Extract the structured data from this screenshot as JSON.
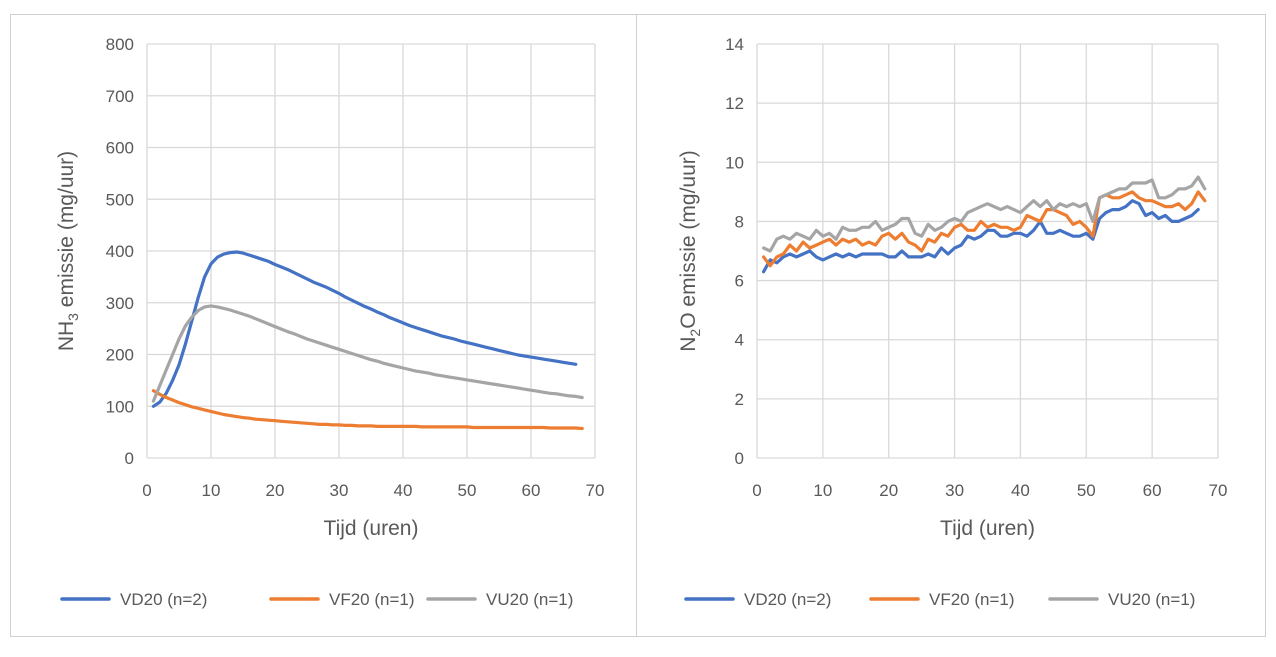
{
  "colors": {
    "VD20": "#4472C4",
    "VF20": "#ED7D31",
    "VU20": "#A5A5A5",
    "grid": "#D9D9D9",
    "text": "#595959",
    "panel_border": "#D0D0D0"
  },
  "chart_data": [
    {
      "type": "line",
      "title": "",
      "xlabel": "Tijd (uren)",
      "ylabel": {
        "pre": "NH",
        "sub": "3",
        "post": " emissie (mg/uur)"
      },
      "xlim": [
        0,
        70
      ],
      "ylim": [
        0,
        800
      ],
      "xticks": [
        0,
        10,
        20,
        30,
        40,
        50,
        60,
        70
      ],
      "yticks": [
        0,
        100,
        200,
        300,
        400,
        500,
        600,
        700,
        800
      ],
      "grid": true,
      "legend": "bottom",
      "series": [
        {
          "name": "VD20 (n=2)",
          "key": "VD20",
          "x": [
            1,
            2,
            3,
            4,
            5,
            6,
            7,
            8,
            9,
            10,
            11,
            12,
            13,
            14,
            15,
            16,
            17,
            18,
            19,
            20,
            21,
            22,
            23,
            24,
            25,
            26,
            27,
            28,
            29,
            30,
            31,
            32,
            33,
            34,
            35,
            36,
            37,
            38,
            39,
            40,
            41,
            42,
            43,
            44,
            45,
            46,
            47,
            48,
            49,
            50,
            51,
            52,
            53,
            54,
            55,
            56,
            57,
            58,
            59,
            60,
            61,
            62,
            63,
            64,
            65,
            66,
            67
          ],
          "y": [
            100,
            108,
            125,
            150,
            180,
            220,
            265,
            310,
            350,
            375,
            388,
            394,
            397,
            398,
            396,
            392,
            388,
            384,
            380,
            374,
            369,
            364,
            358,
            352,
            346,
            340,
            335,
            330,
            324,
            318,
            311,
            305,
            299,
            293,
            288,
            282,
            277,
            271,
            266,
            261,
            256,
            252,
            248,
            244,
            240,
            236,
            233,
            230,
            226,
            223,
            220,
            217,
            214,
            211,
            208,
            205,
            202,
            199,
            197,
            195,
            193,
            191,
            189,
            187,
            185,
            183,
            181
          ]
        },
        {
          "name": "VF20 (n=1)",
          "key": "VF20",
          "x": [
            1,
            2,
            3,
            4,
            5,
            6,
            7,
            8,
            9,
            10,
            11,
            12,
            13,
            14,
            15,
            16,
            17,
            18,
            19,
            20,
            21,
            22,
            23,
            24,
            25,
            26,
            27,
            28,
            29,
            30,
            31,
            32,
            33,
            34,
            35,
            36,
            37,
            38,
            39,
            40,
            41,
            42,
            43,
            44,
            45,
            46,
            47,
            48,
            49,
            50,
            51,
            52,
            53,
            54,
            55,
            56,
            57,
            58,
            59,
            60,
            61,
            62,
            63,
            64,
            65,
            66,
            67,
            68
          ],
          "y": [
            130,
            123,
            117,
            112,
            107,
            103,
            99,
            96,
            93,
            90,
            87,
            84,
            82,
            80,
            78,
            77,
            75,
            74,
            73,
            72,
            71,
            70,
            69,
            68,
            67,
            66,
            65,
            65,
            64,
            64,
            63,
            63,
            62,
            62,
            62,
            61,
            61,
            61,
            61,
            61,
            61,
            61,
            60,
            60,
            60,
            60,
            60,
            60,
            60,
            60,
            59,
            59,
            59,
            59,
            59,
            59,
            59,
            59,
            59,
            59,
            59,
            59,
            58,
            58,
            58,
            58,
            58,
            57
          ]
        },
        {
          "name": "VU20 (n=1)",
          "key": "VU20",
          "x": [
            1,
            2,
            3,
            4,
            5,
            6,
            7,
            8,
            9,
            10,
            11,
            12,
            13,
            14,
            15,
            16,
            17,
            18,
            19,
            20,
            21,
            22,
            23,
            24,
            25,
            26,
            27,
            28,
            29,
            30,
            31,
            32,
            33,
            34,
            35,
            36,
            37,
            38,
            39,
            40,
            41,
            42,
            43,
            44,
            45,
            46,
            47,
            48,
            49,
            50,
            51,
            52,
            53,
            54,
            55,
            56,
            57,
            58,
            59,
            60,
            61,
            62,
            63,
            64,
            65,
            66,
            67,
            68
          ],
          "y": [
            110,
            140,
            170,
            200,
            230,
            255,
            272,
            285,
            292,
            294,
            292,
            289,
            286,
            282,
            278,
            274,
            269,
            264,
            259,
            254,
            249,
            244,
            240,
            235,
            230,
            226,
            222,
            218,
            214,
            210,
            206,
            202,
            198,
            194,
            190,
            187,
            183,
            180,
            177,
            174,
            171,
            168,
            166,
            164,
            161,
            159,
            157,
            155,
            153,
            151,
            149,
            147,
            145,
            143,
            141,
            139,
            137,
            135,
            133,
            131,
            129,
            127,
            125,
            124,
            122,
            120,
            119,
            117
          ]
        }
      ]
    },
    {
      "type": "line",
      "title": "",
      "xlabel": "Tijd (uren)",
      "ylabel": {
        "pre": "N",
        "sub": "2",
        "post": "O emissie (mg/uur)"
      },
      "xlim": [
        0,
        70
      ],
      "ylim": [
        0,
        14
      ],
      "xticks": [
        0,
        10,
        20,
        30,
        40,
        50,
        60,
        70
      ],
      "yticks": [
        0,
        2,
        4,
        6,
        8,
        10,
        12,
        14
      ],
      "grid": true,
      "legend": "bottom",
      "series": [
        {
          "name": "VD20 (n=2)",
          "key": "VD20",
          "x": [
            1,
            2,
            3,
            4,
            5,
            6,
            7,
            8,
            9,
            10,
            11,
            12,
            13,
            14,
            15,
            16,
            17,
            18,
            19,
            20,
            21,
            22,
            23,
            24,
            25,
            26,
            27,
            28,
            29,
            30,
            31,
            32,
            33,
            34,
            35,
            36,
            37,
            38,
            39,
            40,
            41,
            42,
            43,
            44,
            45,
            46,
            47,
            48,
            49,
            50,
            51,
            52,
            53,
            54,
            55,
            56,
            57,
            58,
            59,
            60,
            61,
            62,
            63,
            64,
            65,
            66,
            67
          ],
          "y": [
            6.3,
            6.7,
            6.6,
            6.8,
            6.9,
            6.8,
            6.9,
            7.0,
            6.8,
            6.7,
            6.8,
            6.9,
            6.8,
            6.9,
            6.8,
            6.9,
            6.9,
            6.9,
            6.9,
            6.8,
            6.8,
            7.0,
            6.8,
            6.8,
            6.8,
            6.9,
            6.8,
            7.1,
            6.9,
            7.1,
            7.2,
            7.5,
            7.4,
            7.5,
            7.7,
            7.7,
            7.5,
            7.5,
            7.6,
            7.6,
            7.5,
            7.7,
            8.0,
            7.6,
            7.6,
            7.7,
            7.6,
            7.5,
            7.5,
            7.6,
            7.4,
            8.1,
            8.3,
            8.4,
            8.4,
            8.5,
            8.7,
            8.6,
            8.2,
            8.3,
            8.1,
            8.2,
            8.0,
            8.0,
            8.1,
            8.2,
            8.4
          ]
        },
        {
          "name": "VF20 (n=1)",
          "key": "VF20",
          "x": [
            1,
            2,
            3,
            4,
            5,
            6,
            7,
            8,
            9,
            10,
            11,
            12,
            13,
            14,
            15,
            16,
            17,
            18,
            19,
            20,
            21,
            22,
            23,
            24,
            25,
            26,
            27,
            28,
            29,
            30,
            31,
            32,
            33,
            34,
            35,
            36,
            37,
            38,
            39,
            40,
            41,
            42,
            43,
            44,
            45,
            46,
            47,
            48,
            49,
            50,
            51,
            52,
            53,
            54,
            55,
            56,
            57,
            58,
            59,
            60,
            61,
            62,
            63,
            64,
            65,
            66,
            67,
            68
          ],
          "y": [
            6.8,
            6.5,
            6.8,
            6.9,
            7.2,
            7.0,
            7.3,
            7.1,
            7.2,
            7.3,
            7.4,
            7.2,
            7.4,
            7.3,
            7.4,
            7.2,
            7.3,
            7.2,
            7.5,
            7.6,
            7.4,
            7.6,
            7.3,
            7.2,
            7.0,
            7.4,
            7.3,
            7.6,
            7.5,
            7.8,
            7.9,
            7.7,
            7.7,
            8.0,
            7.8,
            7.9,
            7.8,
            7.8,
            7.7,
            7.8,
            8.2,
            8.1,
            8.0,
            8.4,
            8.4,
            8.3,
            8.2,
            7.9,
            8.0,
            7.8,
            7.5,
            8.8,
            8.9,
            8.8,
            8.8,
            8.9,
            9.0,
            8.8,
            8.7,
            8.7,
            8.6,
            8.5,
            8.5,
            8.6,
            8.4,
            8.6,
            9.0,
            8.7
          ]
        },
        {
          "name": "VU20 (n=1)",
          "key": "VU20",
          "x": [
            1,
            2,
            3,
            4,
            5,
            6,
            7,
            8,
            9,
            10,
            11,
            12,
            13,
            14,
            15,
            16,
            17,
            18,
            19,
            20,
            21,
            22,
            23,
            24,
            25,
            26,
            27,
            28,
            29,
            30,
            31,
            32,
            33,
            34,
            35,
            36,
            37,
            38,
            39,
            40,
            41,
            42,
            43,
            44,
            45,
            46,
            47,
            48,
            49,
            50,
            51,
            52,
            53,
            54,
            55,
            56,
            57,
            58,
            59,
            60,
            61,
            62,
            63,
            64,
            65,
            66,
            67,
            68
          ],
          "y": [
            7.1,
            7.0,
            7.4,
            7.5,
            7.4,
            7.6,
            7.5,
            7.4,
            7.7,
            7.5,
            7.6,
            7.4,
            7.8,
            7.7,
            7.7,
            7.8,
            7.8,
            8.0,
            7.7,
            7.8,
            7.9,
            8.1,
            8.1,
            7.6,
            7.5,
            7.9,
            7.7,
            7.8,
            8.0,
            8.1,
            8.0,
            8.3,
            8.4,
            8.5,
            8.6,
            8.5,
            8.4,
            8.5,
            8.4,
            8.3,
            8.5,
            8.7,
            8.5,
            8.7,
            8.4,
            8.6,
            8.5,
            8.6,
            8.5,
            8.6,
            8.0,
            8.8,
            8.9,
            9.0,
            9.1,
            9.1,
            9.3,
            9.3,
            9.3,
            9.4,
            8.8,
            8.8,
            8.9,
            9.1,
            9.1,
            9.2,
            9.5,
            9.1
          ]
        }
      ]
    }
  ]
}
